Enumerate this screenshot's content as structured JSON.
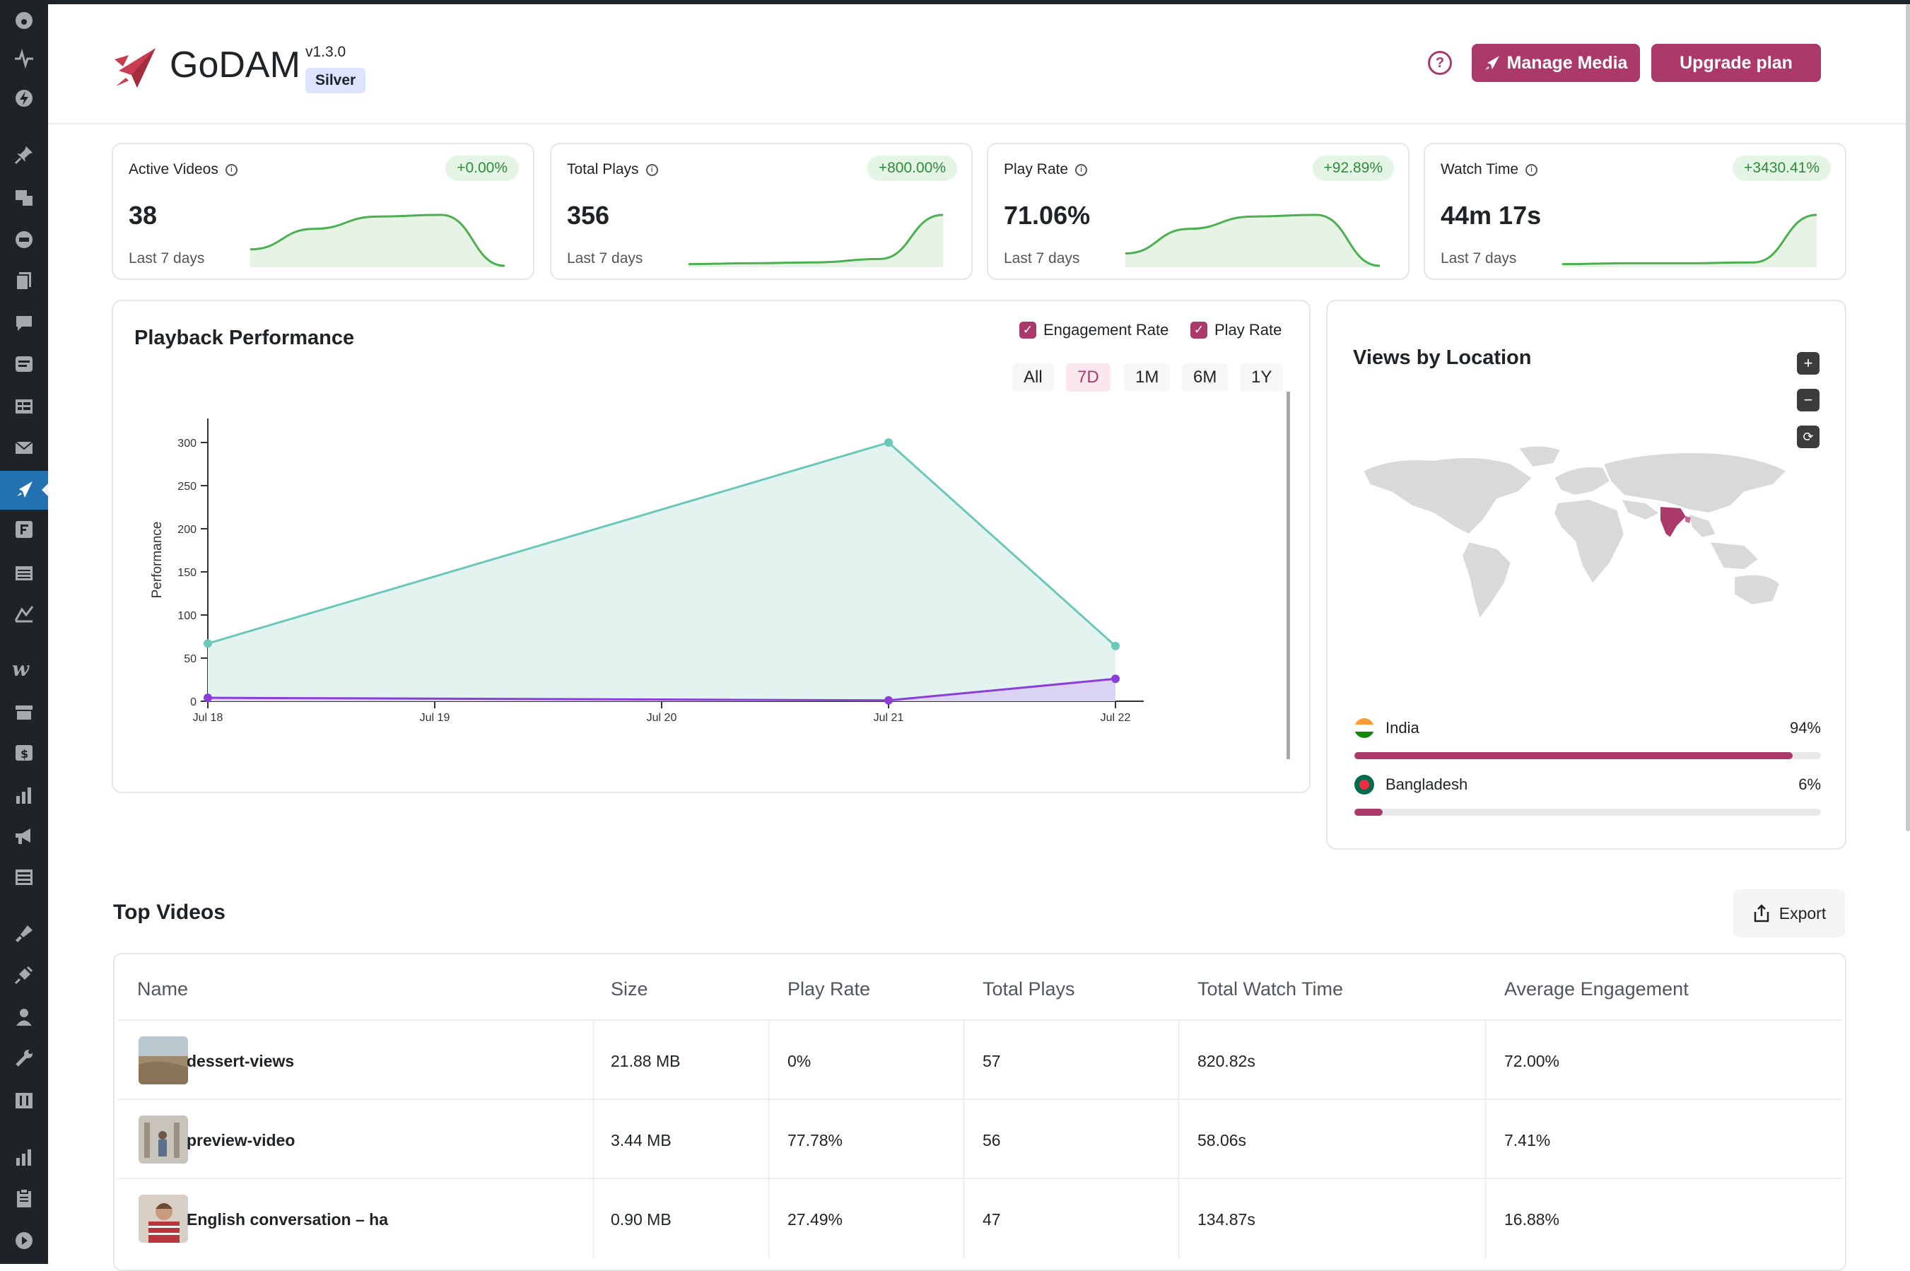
{
  "app": {
    "brand": "GoDAM",
    "version": "v1.3.0",
    "tier": "Silver",
    "manage_media_label": "Manage Media",
    "upgrade_label": "Upgrade plan",
    "help_glyph": "?",
    "accent_color": "#ab3a6b"
  },
  "metrics": [
    {
      "label": "Active Videos",
      "value": "38",
      "change": "+0.00%",
      "period": "Last 7 days",
      "trend": [
        20,
        45,
        60,
        62,
        0
      ]
    },
    {
      "label": "Total Plays",
      "value": "356",
      "change": "+800.00%",
      "period": "Last 7 days",
      "trend": [
        2,
        3,
        4,
        8,
        60
      ]
    },
    {
      "label": "Play Rate",
      "value": "71.06%",
      "change": "+92.89%",
      "period": "Last 7 days",
      "trend": [
        15,
        45,
        60,
        62,
        0
      ]
    },
    {
      "label": "Watch Time",
      "value": "44m 17s",
      "change": "+3430.41%",
      "period": "Last 7 days",
      "trend": [
        2,
        3,
        3,
        4,
        60
      ]
    }
  ],
  "performance": {
    "title": "Playback Performance",
    "legend": [
      "Engagement Rate",
      "Play Rate"
    ],
    "ranges": [
      "All",
      "7D",
      "1M",
      "6M",
      "1Y"
    ],
    "active_range": "7D"
  },
  "chart_data": {
    "type": "area",
    "ylabel": "Performance",
    "x": [
      "Jul 18",
      "Jul 19",
      "Jul 20",
      "Jul 21",
      "Jul 22"
    ],
    "yticks": [
      "0",
      "50",
      "100",
      "150",
      "200",
      "250",
      "300"
    ],
    "ylim": [
      0,
      330
    ],
    "series": [
      {
        "name": "Engagement Rate",
        "color": "#6cc7bb",
        "points": [
          [
            0,
            67
          ],
          [
            3,
            300
          ],
          [
            4,
            64
          ]
        ]
      },
      {
        "name": "Play Rate",
        "color": "#8b3fd8",
        "points": [
          [
            0,
            4
          ],
          [
            3,
            1
          ],
          [
            4,
            26
          ]
        ]
      }
    ]
  },
  "location": {
    "title": "Views by Location",
    "zoom_in": "+",
    "zoom_out": "−",
    "reset": "⟳",
    "countries": [
      {
        "name": "India",
        "percent": "94%",
        "share": 0.94
      },
      {
        "name": "Bangladesh",
        "percent": "6%",
        "share": 0.06
      }
    ]
  },
  "top_videos": {
    "title": "Top Videos",
    "export_label": "Export",
    "headers": [
      "Name",
      "Size",
      "Play Rate",
      "Total Plays",
      "Total Watch Time",
      "Average Engagement"
    ],
    "rows": [
      {
        "name": "dessert-views",
        "size": "21.88 MB",
        "play_rate": "0%",
        "plays": "57",
        "watch": "820.82s",
        "engagement": "72.00%"
      },
      {
        "name": "preview-video",
        "size": "3.44 MB",
        "play_rate": "77.78%",
        "plays": "56",
        "watch": "58.06s",
        "engagement": "7.41%"
      },
      {
        "name": "English conversation – ha",
        "size": "0.90 MB",
        "play_rate": "27.49%",
        "plays": "47",
        "watch": "134.87s",
        "engagement": "16.88%"
      }
    ]
  }
}
